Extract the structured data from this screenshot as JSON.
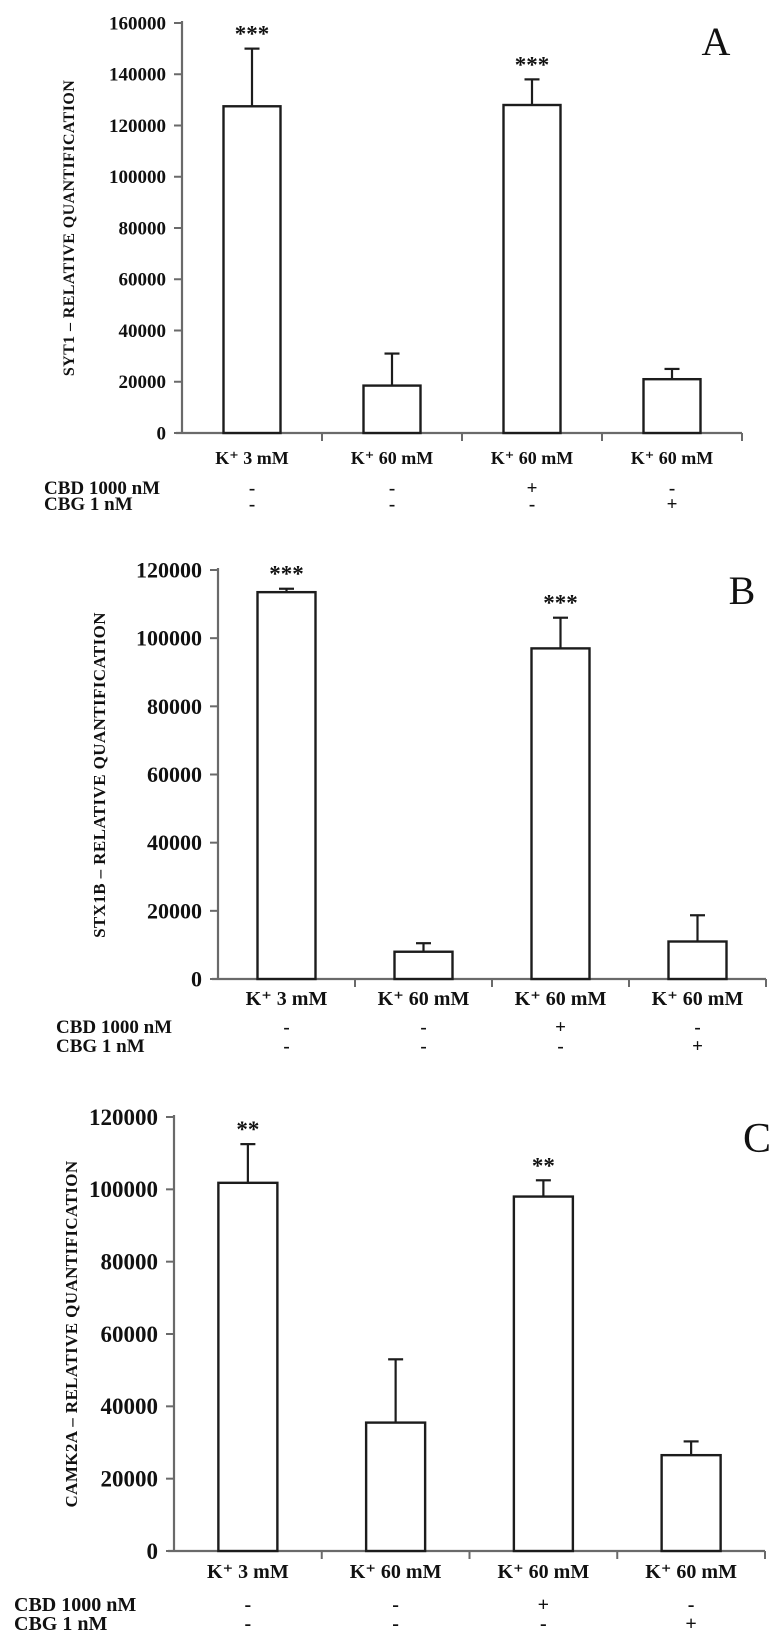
{
  "chart_data": [
    {
      "type": "bar",
      "panel_label": "A",
      "ylabel": "SYT1 – RELATIVE QUANTIFICATION",
      "xlabel": "",
      "categories": [
        "K⁺ 3 mM",
        "K⁺ 60 mM",
        "K⁺ 60 mM",
        "K⁺ 60 mM"
      ],
      "values": [
        127500,
        18500,
        128000,
        21000
      ],
      "error_top": [
        150000,
        31000,
        138000,
        25000
      ],
      "significance": [
        "***",
        "",
        "***",
        ""
      ],
      "ylim": [
        0,
        160000
      ],
      "ytick_step": 20000,
      "grid": false,
      "legend": "none",
      "bar_fill": "#ffffff",
      "bar_stroke": "#1c1c1c",
      "axis_color": "#6a6a6a",
      "condition_rows": [
        {
          "label": "CBD 1000 nM",
          "values": [
            "-",
            "-",
            "+",
            "-"
          ]
        },
        {
          "label": "CBG 1 nM",
          "values": [
            "-",
            "-",
            "-",
            "+"
          ]
        }
      ]
    },
    {
      "type": "bar",
      "panel_label": "B",
      "ylabel": "STX1B – RELATIVE QUANTIFICATION",
      "xlabel": "",
      "categories": [
        "K⁺ 3 mM",
        "K⁺ 60 mM",
        "K⁺ 60 mM",
        "K⁺ 60 mM"
      ],
      "values": [
        113500,
        8000,
        97000,
        11000
      ],
      "error_top": [
        114500,
        10500,
        106000,
        18700
      ],
      "significance": [
        "***",
        "",
        "***",
        ""
      ],
      "ylim": [
        0,
        120000
      ],
      "ytick_step": 20000,
      "grid": false,
      "legend": "none",
      "bar_fill": "#ffffff",
      "bar_stroke": "#1c1c1c",
      "axis_color": "#6a6a6a",
      "condition_rows": [
        {
          "label": "CBD 1000 nM",
          "values": [
            "-",
            "-",
            "+",
            "-"
          ]
        },
        {
          "label": "CBG 1 nM",
          "values": [
            "-",
            "-",
            "-",
            "+"
          ]
        }
      ]
    },
    {
      "type": "bar",
      "panel_label": "C",
      "ylabel": "CAMK2A – RELATIVE QUANTIFICATION",
      "xlabel": "",
      "categories": [
        "K⁺ 3 mM",
        "K⁺ 60 mM",
        "K⁺ 60 mM",
        "K⁺ 60 mM"
      ],
      "values": [
        101800,
        35500,
        98000,
        26500
      ],
      "error_top": [
        112500,
        53000,
        102500,
        30300
      ],
      "significance": [
        "**",
        "",
        "**",
        ""
      ],
      "ylim": [
        0,
        120000
      ],
      "ytick_step": 20000,
      "grid": false,
      "legend": "none",
      "bar_fill": "#ffffff",
      "bar_stroke": "#1c1c1c",
      "axis_color": "#6a6a6a",
      "condition_rows": [
        {
          "label": "CBD 1000 nM",
          "values": [
            "-",
            "-",
            "+",
            "-"
          ]
        },
        {
          "label": "CBG 1 nM",
          "values": [
            "-",
            "-",
            "-",
            "+"
          ]
        }
      ]
    }
  ]
}
